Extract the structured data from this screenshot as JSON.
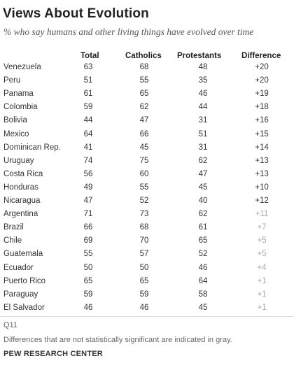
{
  "title": "Views About Evolution",
  "subtitle": "% who say humans and other living things have evolved over time",
  "headers": {
    "total": "Total",
    "catholics": "Catholics",
    "protestants": "Protestants",
    "difference": "Difference"
  },
  "rows": [
    {
      "country": "Venezuela",
      "total": "63",
      "catholics": "68",
      "protestants": "48",
      "difference": "+20",
      "significant": true
    },
    {
      "country": "Peru",
      "total": "51",
      "catholics": "55",
      "protestants": "35",
      "difference": "+20",
      "significant": true
    },
    {
      "country": "Panama",
      "total": "61",
      "catholics": "65",
      "protestants": "46",
      "difference": "+19",
      "significant": true
    },
    {
      "country": "Colombia",
      "total": "59",
      "catholics": "62",
      "protestants": "44",
      "difference": "+18",
      "significant": true
    },
    {
      "country": "Bolivia",
      "total": "44",
      "catholics": "47",
      "protestants": "31",
      "difference": "+16",
      "significant": true
    },
    {
      "country": "Mexico",
      "total": "64",
      "catholics": "66",
      "protestants": "51",
      "difference": "+15",
      "significant": true
    },
    {
      "country": "Dominican Rep.",
      "total": "41",
      "catholics": "45",
      "protestants": "31",
      "difference": "+14",
      "significant": true
    },
    {
      "country": "Uruguay",
      "total": "74",
      "catholics": "75",
      "protestants": "62",
      "difference": "+13",
      "significant": true
    },
    {
      "country": "Costa Rica",
      "total": "56",
      "catholics": "60",
      "protestants": "47",
      "difference": "+13",
      "significant": true
    },
    {
      "country": "Honduras",
      "total": "49",
      "catholics": "55",
      "protestants": "45",
      "difference": "+10",
      "significant": true
    },
    {
      "country": "Nicaragua",
      "total": "47",
      "catholics": "52",
      "protestants": "40",
      "difference": "+12",
      "significant": true
    },
    {
      "country": "Argentina",
      "total": "71",
      "catholics": "73",
      "protestants": "62",
      "difference": "+11",
      "significant": false
    },
    {
      "country": "Brazil",
      "total": "66",
      "catholics": "68",
      "protestants": "61",
      "difference": "+7",
      "significant": false
    },
    {
      "country": "Chile",
      "total": "69",
      "catholics": "70",
      "protestants": "65",
      "difference": "+5",
      "significant": false
    },
    {
      "country": "Guatemala",
      "total": "55",
      "catholics": "57",
      "protestants": "52",
      "difference": "+5",
      "significant": false
    },
    {
      "country": "Ecuador",
      "total": "50",
      "catholics": "50",
      "protestants": "46",
      "difference": "+4",
      "significant": false
    },
    {
      "country": "Puerto Rico",
      "total": "65",
      "catholics": "65",
      "protestants": "64",
      "difference": "+1",
      "significant": false
    },
    {
      "country": "Paraguay",
      "total": "59",
      "catholics": "59",
      "protestants": "58",
      "difference": "+1",
      "significant": false
    },
    {
      "country": "El Salvador",
      "total": "46",
      "catholics": "46",
      "protestants": "45",
      "difference": "+1",
      "significant": false
    }
  ],
  "question_id": "Q11",
  "note": "Differences that are not statistically significant are indicated in gray.",
  "source": "PEW RESEARCH CENTER",
  "colors": {
    "gray_text": "#aaaaaa",
    "stripe": "#f1f1f1"
  }
}
